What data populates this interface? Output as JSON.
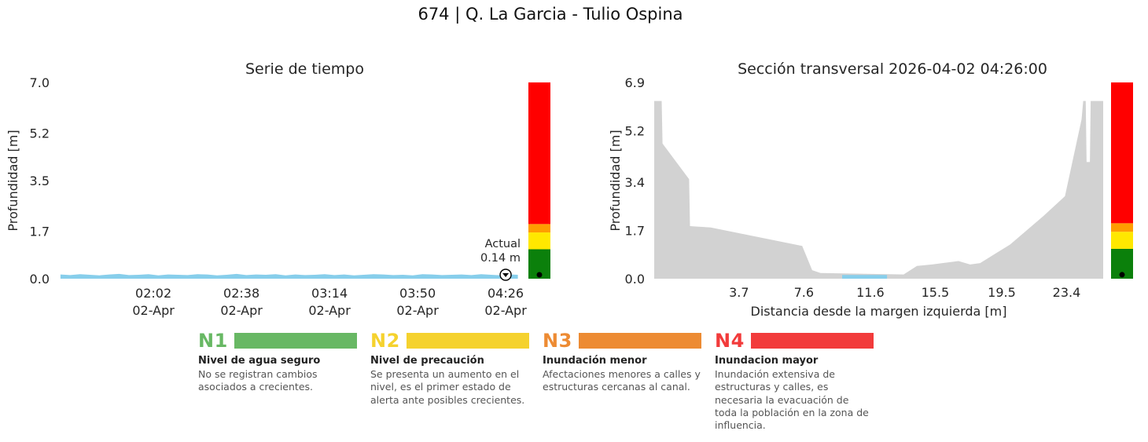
{
  "page_title": "674 | Q. La Garcia - Tulio Ospina",
  "chart_data": [
    {
      "type": "area",
      "title": "Serie de tiempo",
      "ylabel": "Profundidad [m]",
      "ylim": [
        0,
        7.0
      ],
      "ytick_values": [
        0.0,
        1.7,
        3.5,
        5.2,
        7.0
      ],
      "ytick_labels": [
        "0.0",
        "1.7",
        "3.5",
        "5.2",
        "7.0"
      ],
      "xlim_minutes": [
        -38.6,
        162.3
      ],
      "xtick_values": [
        0,
        36,
        72,
        108,
        144
      ],
      "xtick_labels_time": [
        "02:02",
        "02:38",
        "03:14",
        "03:50",
        "04:26"
      ],
      "xtick_labels_date": [
        "02-Apr",
        "02-Apr",
        "02-Apr",
        "02-Apr",
        "02-Apr"
      ],
      "series_name": "Profundidad",
      "series_color": "#87ceeb",
      "grid": false,
      "points": [
        [
          -38,
          0.15
        ],
        [
          -34,
          0.13
        ],
        [
          -30,
          0.16
        ],
        [
          -26,
          0.14
        ],
        [
          -22,
          0.12
        ],
        [
          -18,
          0.15
        ],
        [
          -14,
          0.17
        ],
        [
          -10,
          0.13
        ],
        [
          -6,
          0.14
        ],
        [
          -2,
          0.16
        ],
        [
          2,
          0.12
        ],
        [
          6,
          0.15
        ],
        [
          10,
          0.14
        ],
        [
          14,
          0.13
        ],
        [
          18,
          0.16
        ],
        [
          22,
          0.15
        ],
        [
          26,
          0.12
        ],
        [
          30,
          0.14
        ],
        [
          34,
          0.17
        ],
        [
          38,
          0.13
        ],
        [
          42,
          0.15
        ],
        [
          46,
          0.14
        ],
        [
          50,
          0.16
        ],
        [
          54,
          0.12
        ],
        [
          58,
          0.15
        ],
        [
          62,
          0.13
        ],
        [
          66,
          0.14
        ],
        [
          70,
          0.16
        ],
        [
          74,
          0.13
        ],
        [
          78,
          0.15
        ],
        [
          82,
          0.12
        ],
        [
          86,
          0.14
        ],
        [
          90,
          0.16
        ],
        [
          94,
          0.15
        ],
        [
          98,
          0.13
        ],
        [
          102,
          0.14
        ],
        [
          106,
          0.12
        ],
        [
          110,
          0.16
        ],
        [
          114,
          0.15
        ],
        [
          118,
          0.13
        ],
        [
          122,
          0.14
        ],
        [
          126,
          0.15
        ],
        [
          130,
          0.13
        ],
        [
          134,
          0.16
        ],
        [
          138,
          0.14
        ],
        [
          142,
          0.12
        ],
        [
          146,
          0.15
        ],
        [
          149,
          0.14
        ]
      ],
      "annotation": {
        "line1": "Actual",
        "line2": "0.14 m"
      },
      "current_marker": {
        "t": 144,
        "value": 0.14
      }
    },
    {
      "type": "area",
      "title": "Sección transversal 2026-04-02 04:26:00",
      "xlabel": "Distancia desde la margen izquierda [m]",
      "ylabel": "Profundidad [m]",
      "ylim": [
        0,
        6.9
      ],
      "ytick_values": [
        0.0,
        1.7,
        3.4,
        5.2,
        6.9
      ],
      "ytick_labels": [
        "0.0",
        "1.7",
        "3.4",
        "5.2",
        "6.9"
      ],
      "xlim": [
        -1.4,
        25.6
      ],
      "xtick_values": [
        3.7,
        7.6,
        11.6,
        15.5,
        19.5,
        23.4
      ],
      "xtick_labels": [
        "3.7",
        "7.6",
        "11.6",
        "15.5",
        "19.5",
        "23.4"
      ],
      "grid": false,
      "terrain_color": "#d2d2d2",
      "water_color": "#87ceeb",
      "terrain_points": [
        [
          -1.4,
          6.25
        ],
        [
          -0.95,
          6.25
        ],
        [
          -0.9,
          4.75
        ],
        [
          0.7,
          3.5
        ],
        [
          0.75,
          1.85
        ],
        [
          2.0,
          1.8
        ],
        [
          7.5,
          1.15
        ],
        [
          8.1,
          0.3
        ],
        [
          8.6,
          0.2
        ],
        [
          13.6,
          0.15
        ],
        [
          14.4,
          0.45
        ],
        [
          15.3,
          0.5
        ],
        [
          16.9,
          0.62
        ],
        [
          17.6,
          0.5
        ],
        [
          18.2,
          0.55
        ],
        [
          20.0,
          1.2
        ],
        [
          22.0,
          2.2
        ],
        [
          23.3,
          2.9
        ],
        [
          24.3,
          5.6
        ],
        [
          24.4,
          6.25
        ],
        [
          24.55,
          6.25
        ],
        [
          24.6,
          4.1
        ],
        [
          24.8,
          4.1
        ],
        [
          24.85,
          6.25
        ],
        [
          25.6,
          6.25
        ]
      ],
      "water_points": [
        [
          9.9,
          0.13
        ],
        [
          12.6,
          0.13
        ]
      ]
    }
  ],
  "alert_bar": {
    "thresholds": [
      1.05,
      1.65,
      1.95
    ],
    "colors": [
      "#0b800b",
      "#ffe800",
      "#ff9d00",
      "#ff0000"
    ],
    "level_names": [
      "N1",
      "N2",
      "N3",
      "N4"
    ],
    "marker_value": 0.14,
    "marker_color": "#000000"
  },
  "legend": {
    "items": [
      {
        "code": "N1",
        "color": "#68b864",
        "title": "Nivel de agua seguro",
        "description": "No se registran cambios asociados a crecientes."
      },
      {
        "code": "N2",
        "color": "#f5d22e",
        "title": "Nivel de precaución",
        "description": "Se presenta un aumento en el nivel, es el primer estado de alerta ante posibles crecientes."
      },
      {
        "code": "N3",
        "color": "#ed8b33",
        "title": "Inundación menor",
        "description": "Afectaciones menores a calles y estructuras cercanas al canal."
      },
      {
        "code": "N4",
        "color": "#f23b3b",
        "title": "Inundacion mayor",
        "description": "Inundación extensiva de estructuras y calles, es necesaria la evacuación de toda la población en la zona de influencia."
      }
    ]
  }
}
